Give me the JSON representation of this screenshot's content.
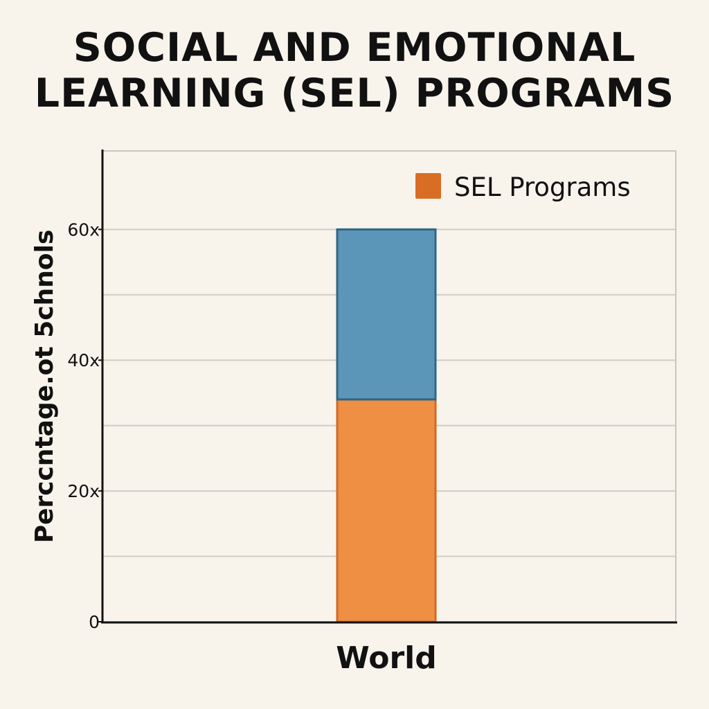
{
  "chart_data": {
    "type": "bar",
    "title_lines": [
      "SOCIAL AND EMOTIONAL",
      "LEARNING (SEL) PROGRAMS"
    ],
    "ylabel": "Perccntage.ot 5chnols",
    "xlabel": "",
    "categories": [
      "World"
    ],
    "stacked": true,
    "series": [
      {
        "name": "SEL Programs",
        "values": [
          34
        ],
        "color": "#ee8f44",
        "stroke": "#d06a26"
      },
      {
        "name": "",
        "values": [
          26
        ],
        "color": "#5b96b8",
        "stroke": "#2f6686"
      }
    ],
    "legend": {
      "position": "top-right",
      "label": "SEL Programs",
      "color": "#d96d24"
    },
    "y_ticks": [
      {
        "value": 0,
        "label": "0"
      },
      {
        "value": 20,
        "label": "20x"
      },
      {
        "value": 40,
        "label": "40x"
      },
      {
        "value": 60,
        "label": "60x"
      }
    ],
    "ylim": [
      0,
      72
    ],
    "grid": true
  }
}
